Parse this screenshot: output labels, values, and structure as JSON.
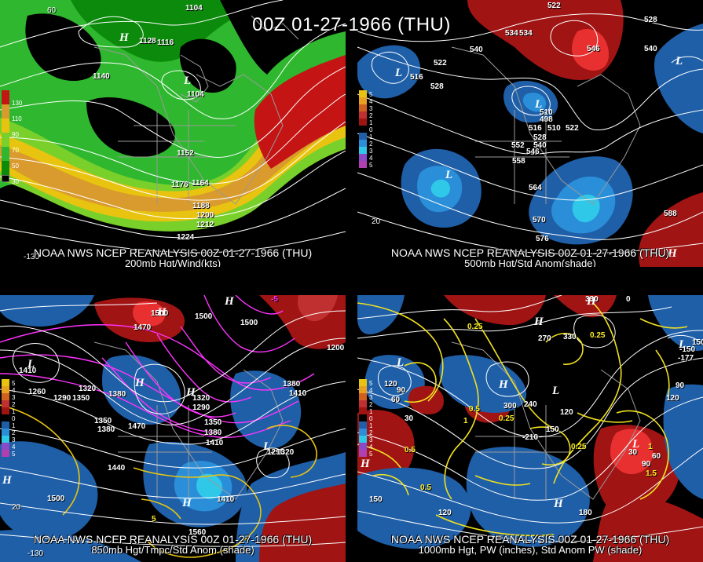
{
  "title": "00Z 01-27-1966 (THU)",
  "colors": {
    "background": "#000000",
    "land_lines": "#9a9a9a",
    "contour": "#ffffff",
    "jet_green_dark": "#0b8a0b",
    "jet_green": "#2fb82f",
    "jet_green_light": "#7ad02a",
    "jet_yellow": "#e8c410",
    "jet_orange": "#d99a2e",
    "jet_red": "#c41414",
    "anom_pos": "#a01414",
    "anom_pos_strong": "#e83030",
    "anom_neg": "#1f5fa8",
    "anom_neg_mid": "#2a8fd8",
    "anom_neg_strong": "#30c8e8",
    "pw_line": "#f0e020",
    "temp_line": "#e040e0"
  },
  "panels": [
    {
      "id": "tl",
      "caption_line1": "NOAA NWS NCEP REANALYSIS 00Z 01-27-1966 (THU)",
      "caption_line2": "200mb Hgt/Wind(kts)",
      "legend": [
        "130",
        "110",
        "90",
        "70",
        "50",
        "30"
      ],
      "labels": [
        "1104",
        "1128",
        "1116",
        "1140",
        "1104",
        "1152",
        "1176",
        "1164",
        "1188",
        "1200",
        "1212",
        "1224",
        "60",
        "-130"
      ],
      "pressure_centers": [
        "H",
        "L"
      ]
    },
    {
      "id": "tr",
      "caption_line1": "NOAA NWS NCEP REANALYSIS 00Z 01-27-1966 (THU)",
      "caption_line2": "500mb Hgt/Std Anom(shade)",
      "legend": [
        "5",
        "4",
        "3",
        "2",
        "1",
        "0",
        "1",
        "2",
        "3",
        "4",
        "5"
      ],
      "labels": [
        "522",
        "534",
        "540",
        "546",
        "528",
        "540",
        "522",
        "516",
        "528",
        "510",
        "498",
        "516",
        "510",
        "522",
        "528",
        "540",
        "552",
        "546",
        "558",
        "564",
        "570",
        "576",
        "588",
        "534",
        "20"
      ],
      "pressure_centers": [
        "L",
        "L",
        "L",
        "L",
        "H"
      ]
    },
    {
      "id": "bl",
      "caption_line1": "NOAA NWS NCEP REANALYSIS 00Z 01-27-1966 (THU)",
      "caption_line2": "850mb Hgt/Tmpc/Std Anom (shade)",
      "legend": [
        "5",
        "4",
        "3",
        "2",
        "1",
        "0",
        "1",
        "2",
        "3",
        "4",
        "5"
      ],
      "labels": [
        "1500",
        "1470",
        "1500",
        "1410",
        "1320",
        "1290",
        "1260",
        "1350",
        "1380",
        "1320",
        "1290",
        "1350",
        "1380",
        "1410",
        "1200",
        "1380",
        "1410",
        "1440",
        "1500",
        "1560",
        "1470",
        "1290",
        "1320",
        "1350",
        "1380",
        "1410",
        "1500",
        "-130",
        "-5",
        "5",
        "20"
      ],
      "pressure_centers": [
        "H",
        "H",
        "L",
        "H",
        "H",
        "H",
        "H",
        "L"
      ]
    },
    {
      "id": "br",
      "caption_line1": "NOAA NWS NCEP REANALYSIS 00Z 01-27-1966 (THU)",
      "caption_line2": "1000mb Hgt, PW (inches), Std Anom PW (shade)",
      "legend": [
        "5",
        "4",
        "3",
        "2",
        "1",
        "0",
        "1",
        "2",
        "3",
        "4",
        "5"
      ],
      "labels": [
        "330",
        "0",
        "0.25",
        "270",
        "330",
        "0.25",
        "150",
        "120",
        "90",
        "60",
        "30",
        "0.5",
        "300",
        "240",
        "120",
        "150",
        "0.25",
        "120",
        "90",
        "0.25",
        "0.5",
        "1",
        "1.5",
        "120",
        "150",
        "180",
        "90",
        "60",
        "30",
        "0.5",
        "1",
        "-210",
        "-150",
        "-177"
      ],
      "pressure_centers": [
        "H",
        "H",
        "L",
        "L",
        "H",
        "H",
        "L",
        "H",
        "L"
      ]
    }
  ]
}
